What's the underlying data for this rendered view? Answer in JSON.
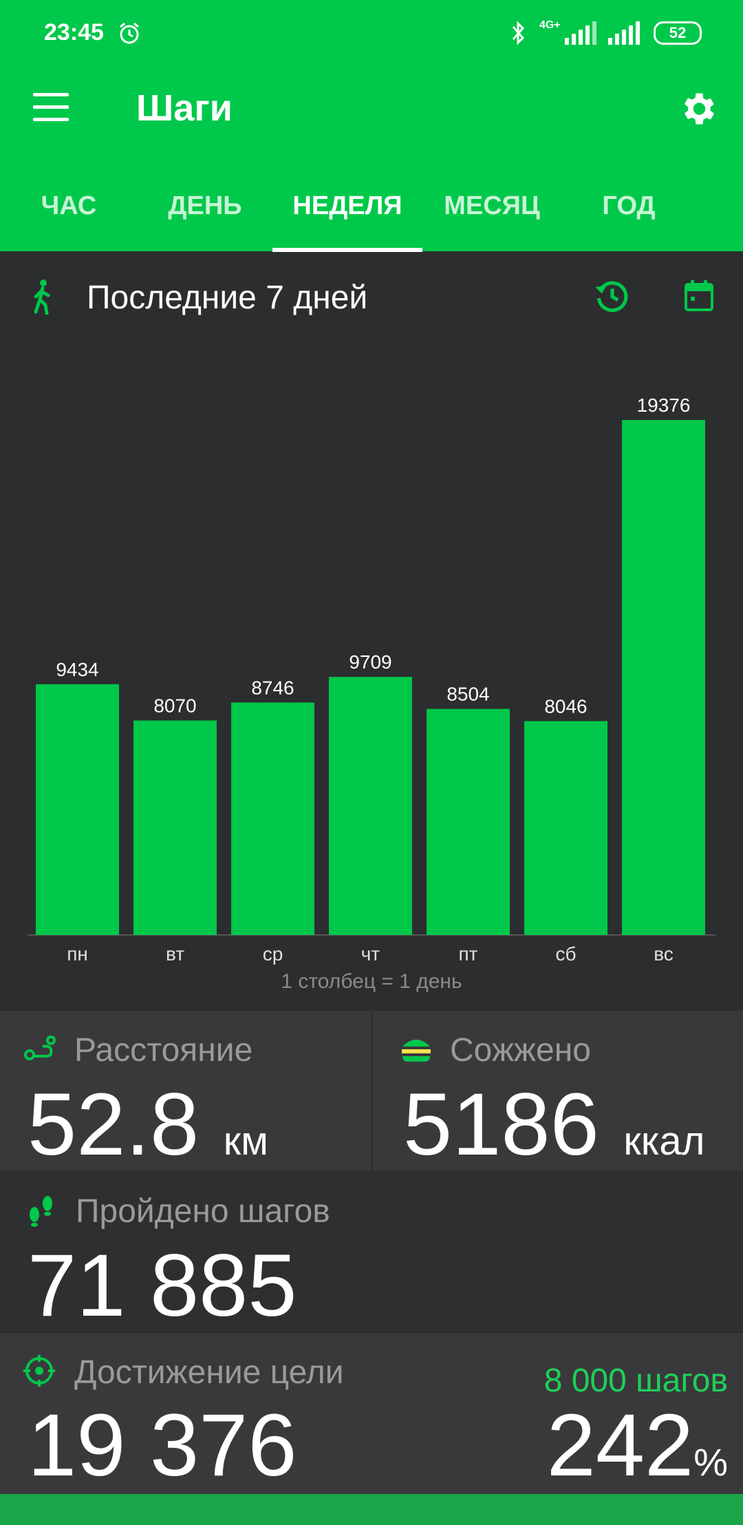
{
  "status_bar": {
    "time": "23:45",
    "network": "4G+",
    "battery": "52"
  },
  "toolbar": {
    "title": "Шаги"
  },
  "tabs": [
    {
      "label": "ЧАС",
      "active": false
    },
    {
      "label": "ДЕНЬ",
      "active": false
    },
    {
      "label": "НЕДЕЛЯ",
      "active": true
    },
    {
      "label": "МЕСЯЦ",
      "active": false
    },
    {
      "label": "ГОД",
      "active": false
    }
  ],
  "range": {
    "title": "Последние 7 дней"
  },
  "chart_data": {
    "type": "bar",
    "categories": [
      "пн",
      "вт",
      "ср",
      "чт",
      "пт",
      "сб",
      "вс"
    ],
    "values": [
      9434,
      8070,
      8746,
      9709,
      8504,
      8046,
      19376
    ],
    "ylim": [
      0,
      19376
    ],
    "footnote": "1 столбец = 1 день",
    "bar_color": "#00c84a"
  },
  "stats": {
    "distance": {
      "label": "Расстояние",
      "value": "52.8",
      "unit": "км"
    },
    "calories": {
      "label": "Сожжено",
      "value": "5186",
      "unit": "ккал"
    },
    "steps": {
      "label": "Пройдено шагов",
      "value": "71 885"
    },
    "goal": {
      "label": "Достижение цели",
      "value": "19 376",
      "target": "8 000 шагов",
      "percent": "242",
      "percent_sign": "%"
    }
  },
  "colors": {
    "accent": "#00c84a",
    "background": "#2c2d2f",
    "card": "#39393b"
  }
}
